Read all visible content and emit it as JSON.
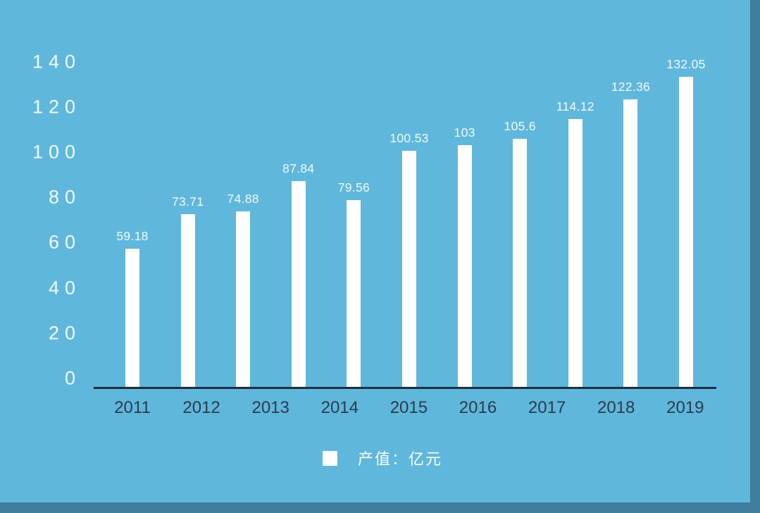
{
  "colors": {
    "background": "#5fb7dc",
    "edge_strip": "#3e7d9c",
    "bar": "#ffffff",
    "value_label": "#f2f9fd",
    "y_tick_label": "#f2f9fd",
    "x_tick_label": "#2b3b4a",
    "axis_line": "#1d2f3e",
    "legend_swatch": "#ffffff",
    "legend_text": "#fdfeff"
  },
  "chart_data": {
    "type": "bar",
    "title": "",
    "values": [
      59.18,
      73.71,
      74.88,
      87.84,
      79.56,
      100.53,
      103,
      105.6,
      114.12,
      122.36,
      132.05
    ],
    "bar_value_labels": [
      "59.18",
      "73.71",
      "74.88",
      "87.84",
      "79.56",
      "100.53",
      "103",
      "105.6",
      "114.12",
      "122.36",
      "132.05"
    ],
    "x_axis_tick_labels": [
      "2011",
      "2012",
      "2013",
      "2014",
      "2015",
      "2016",
      "2017",
      "2018",
      "2019"
    ],
    "y_axis_tick_labels": [
      "140",
      "120",
      "100",
      "80",
      "60",
      "40",
      "20",
      "0"
    ],
    "ylim": [
      0,
      140
    ],
    "grid": false,
    "bars_shown": 11,
    "x_ticks_shown": 9,
    "legend": {
      "position": "bottom-center",
      "label": "产值：亿元"
    }
  }
}
